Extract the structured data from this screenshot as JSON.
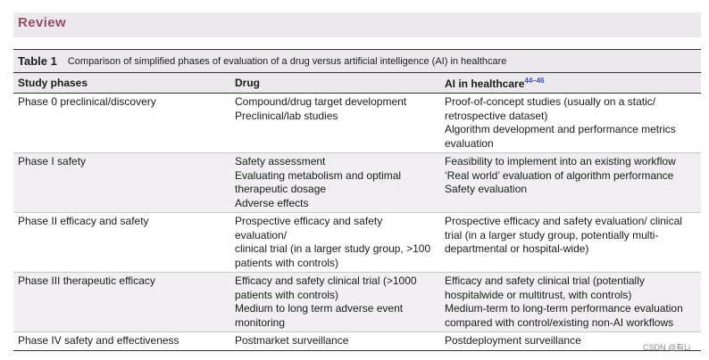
{
  "section_label": "Review",
  "table": {
    "label": "Table 1",
    "caption": "Comparison of simplified phases of evaluation of a drug versus artificial intelligence (AI) in healthcare",
    "headers": [
      "Study phases",
      "Drug",
      "AI in healthcare"
    ],
    "header_ref": "44–46",
    "rows": [
      {
        "phase": "Phase 0 preclinical/discovery",
        "drug": [
          "Compound/drug target development",
          "Preclinical/lab studies"
        ],
        "ai": [
          "Proof-of-concept studies (usually on a static/",
          "retrospective dataset)",
          "Algorithm development and performance metrics",
          "evaluation"
        ]
      },
      {
        "phase": "Phase I safety",
        "drug": [
          "Safety assessment",
          "Evaluating metabolism and optimal",
          "therapeutic dosage",
          "Adverse effects"
        ],
        "ai": [
          "Feasibility to implement into an existing workflow",
          "‘Real world’ evaluation of algorithm performance",
          "Safety evaluation"
        ]
      },
      {
        "phase": "Phase II efficacy and safety",
        "drug": [
          "Prospective efficacy and safety evaluation/",
          "clinical trial (in a larger study group, >100",
          "patients with controls)"
        ],
        "ai": [
          "Prospective efficacy and safety evaluation/ clinical",
          "trial (in a larger study group, potentially multi-",
          "departmental or hospital-wide)"
        ]
      },
      {
        "phase": "Phase III therapeutic efficacy",
        "drug": [
          "Efficacy and safety clinical trial (>1000",
          "patients with controls)",
          "Medium to long term adverse event",
          "monitoring"
        ],
        "ai": [
          "Efficacy and safety clinical trial (potentially",
          "hospitalwide or multitrust, with controls)",
          "Medium-term to long-term performance evaluation",
          "compared with control/existing non-AI workflows"
        ]
      },
      {
        "phase": "Phase IV safety and effectiveness",
        "drug": [
          "Postmarket surveillance"
        ],
        "ai": [
          "Postdeployment surveillance"
        ]
      }
    ]
  },
  "watermark": "CSDN @有Li"
}
